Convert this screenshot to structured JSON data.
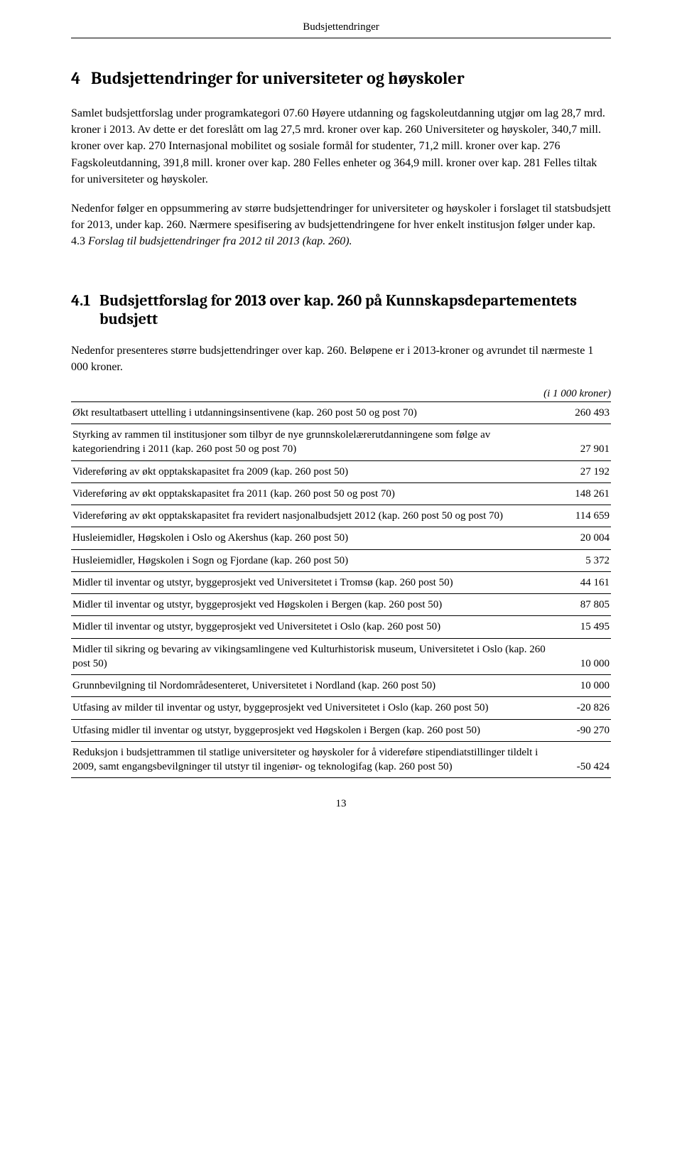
{
  "running_head": "Budsjettendringer",
  "heading4_num": "4",
  "heading4_text": "Budsjettendringer for universiteter og høyskoler",
  "para1": "Samlet budsjettforslag under programkategori 07.60 Høyere utdanning og fagskoleutdanning utgjør om lag 28,7 mrd. kroner i 2013. Av dette er det foreslått om lag 27,5 mrd. kroner over kap. 260 Universiteter og høyskoler, 340,7 mill. kroner over kap. 270 Internasjonal mobilitet og sosiale formål for studenter, 71,2 mill. kroner over kap. 276 Fagskoleutdanning, 391,8 mill. kroner over kap. 280 Felles enheter og 364,9 mill. kroner over kap. 281 Felles tiltak for universiteter og høyskoler.",
  "para2a": "Nedenfor følger en oppsummering av større budsjettendringer for universiteter og høyskoler i forslaget til statsbudsjett for 2013, under kap. 260. Nærmere spesifisering av budsjettendringene for hver enkelt institusjon følger under kap. 4.3 ",
  "para2b_italic": "Forslag til budsjettendringer fra 2012 til 2013 (kap. 260).",
  "heading41_num": "4.1",
  "heading41_text": "Budsjettforslag for 2013 over kap. 260 på Kunnskapsdepartementets budsjett",
  "para3": "Nedenfor presenteres større budsjettendringer over kap. 260. Beløpene er i 2013-kroner og avrundet til nærmeste 1 000 kroner.",
  "table_caption_a": "(",
  "table_caption_b": "i 1 000 kroner",
  "table_caption_c": ")",
  "rows": [
    {
      "label": "Økt resultatbasert uttelling i utdanningsinsentivene (kap. 260 post 50 og post 70)",
      "value": "260 493"
    },
    {
      "label": "Styrking av rammen til institusjoner som tilbyr de nye grunnskolelærerutdanningene som følge av kategoriendring i 2011 (kap. 260 post 50 og post 70)",
      "value": "27 901"
    },
    {
      "label": "Videreføring av økt opptakskapasitet fra 2009 (kap. 260 post 50)",
      "value": "27 192"
    },
    {
      "label": "Videreføring av økt opptakskapasitet fra 2011 (kap. 260 post 50 og post 70)",
      "value": "148 261"
    },
    {
      "label": "Videreføring av økt opptakskapasitet fra revidert nasjonalbudsjett 2012 (kap. 260 post 50 og post 70)",
      "value": "114 659"
    },
    {
      "label": "Husleiemidler, Høgskolen i Oslo og Akershus (kap. 260 post 50)",
      "value": "20 004"
    },
    {
      "label": "Husleiemidler, Høgskolen i Sogn og Fjordane (kap. 260 post 50)",
      "value": "5 372"
    },
    {
      "label": "Midler til inventar og utstyr, byggeprosjekt ved Universitetet i Tromsø (kap. 260 post 50)",
      "value": "44 161"
    },
    {
      "label": "Midler til inventar og utstyr, byggeprosjekt ved Høgskolen i Bergen (kap. 260 post 50)",
      "value": "87 805"
    },
    {
      "label": "Midler til inventar og utstyr, byggeprosjekt ved Universitetet i Oslo (kap. 260 post 50)",
      "value": "15 495"
    },
    {
      "label": "Midler til sikring og bevaring av vikingsamlingene ved Kulturhistorisk museum, Universitetet i Oslo (kap. 260 post 50)",
      "value": "10 000"
    },
    {
      "label": "Grunnbevilgning til Nordområdesenteret, Universitetet i Nordland (kap. 260 post 50)",
      "value": "10 000"
    },
    {
      "label": "Utfasing av milder til inventar og ustyr, byggeprosjekt ved Universitetet i Oslo (kap. 260 post 50)",
      "value": "-20 826"
    },
    {
      "label": "Utfasing midler til inventar og utstyr, byggeprosjekt ved Høgskolen i Bergen (kap. 260 post 50)",
      "value": "-90 270"
    },
    {
      "label": "Reduksjon i budsjettrammen til statlige universiteter og høyskoler for å videreføre stipendiatstillinger tildelt i 2009, samt engangsbevilgninger til utstyr til ingeniør- og teknologifag (kap. 260 post 50)",
      "value": "-50 424"
    }
  ],
  "page_number": "13"
}
